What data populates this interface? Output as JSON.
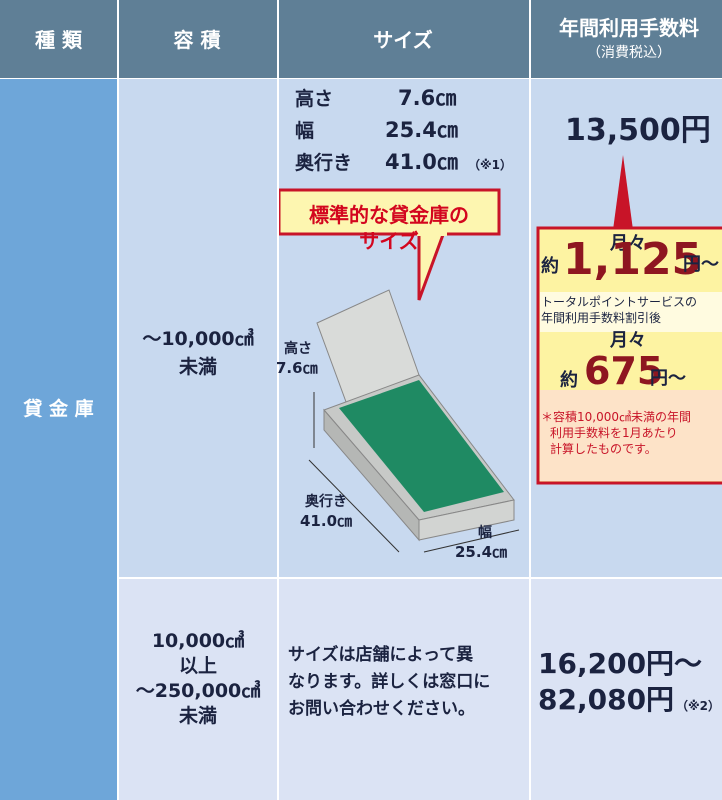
{
  "header": {
    "columns": [
      "種 類",
      "容 積",
      "サイズ"
    ],
    "fee_title": "年間利用手数料",
    "fee_note": "（消費税込）"
  },
  "category": "貸 金 庫",
  "rows": [
    {
      "volume": [
        "～10,000㎤",
        "未満"
      ],
      "size": {
        "items": [
          {
            "label": "高さ",
            "value": "7.6㎝"
          },
          {
            "label": "幅",
            "value": "25.4㎝"
          },
          {
            "label": "奥行き",
            "value": "41.0㎝"
          }
        ],
        "note": "（※1）"
      },
      "callout": [
        "標準的な貸金庫の",
        "サイズ"
      ],
      "illustration": {
        "height_label": "高さ",
        "height_value": "7.6㎝",
        "depth_label": "奥行き",
        "depth_value": "41.0㎝",
        "width_label": "幅",
        "width_value": "25.4㎝"
      },
      "fee": "13,500円",
      "monthly": {
        "label": "月々",
        "prefix": "約",
        "amount": "1,125",
        "suffix": "円～",
        "discount_lines": [
          "トータルポイントサービスの",
          "年間利用手数料割引後"
        ],
        "discount_label": "月々",
        "discount_prefix": "約",
        "discount_amount": "675",
        "discount_suffix": "円～",
        "note_lines": [
          "＊容積10,000㎤未満の年間",
          "利用手数料を1月あたり",
          "計算したものです。"
        ]
      }
    },
    {
      "volume": [
        "10,000㎤",
        "以上",
        "～250,000㎤",
        "未満"
      ],
      "size_text": [
        "サイズは店舗によって異",
        "なります。詳しくは窓口に",
        "お問い合わせください。"
      ],
      "fee_lines": [
        "16,200円～",
        "82,080円"
      ],
      "fee_note": "（※2）"
    }
  ]
}
